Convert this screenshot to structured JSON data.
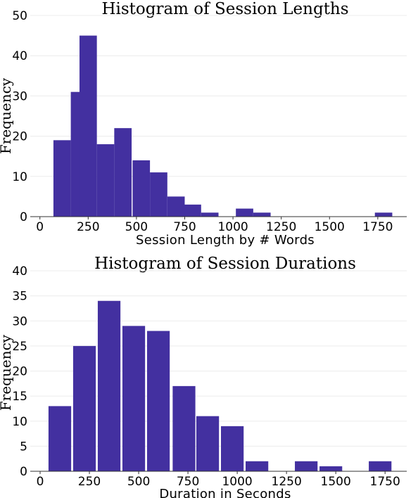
{
  "accent": "#4330a0",
  "chart_data": [
    {
      "type": "bar",
      "title": "Histogram of Session Lengths",
      "xlabel": "Session Length by # Words",
      "ylabel": "Frequency",
      "bin_width": 90,
      "x": [
        115,
        205,
        250,
        340,
        430,
        525,
        615,
        705,
        790,
        880,
        1060,
        1150,
        1780
      ],
      "values": [
        19,
        31,
        45,
        18,
        22,
        14,
        11,
        5,
        3,
        1,
        2,
        1,
        1
      ],
      "xticks": [
        0,
        250,
        500,
        750,
        1000,
        1250,
        1500,
        1750
      ],
      "yticks": [
        0,
        10,
        20,
        30,
        40,
        50
      ],
      "xlim": [
        -50,
        1900
      ],
      "ylim": [
        0,
        50
      ],
      "grid": true
    },
    {
      "type": "bar",
      "title": "Histogram of Session Durations",
      "xlabel": "Duration in Seconds",
      "ylabel": "Frequency",
      "bin_width": 115,
      "x": [
        100,
        225,
        350,
        475,
        600,
        730,
        850,
        975,
        1100,
        1350,
        1475,
        1725
      ],
      "values": [
        13,
        25,
        34,
        29,
        28,
        17,
        11,
        9,
        2,
        2,
        1,
        2
      ],
      "xticks": [
        0,
        250,
        500,
        750,
        1000,
        1250,
        1500,
        1750
      ],
      "yticks": [
        0,
        5,
        10,
        15,
        20,
        25,
        30,
        35,
        40
      ],
      "xlim": [
        -50,
        1860
      ],
      "ylim": [
        0,
        40
      ],
      "grid": true
    }
  ]
}
